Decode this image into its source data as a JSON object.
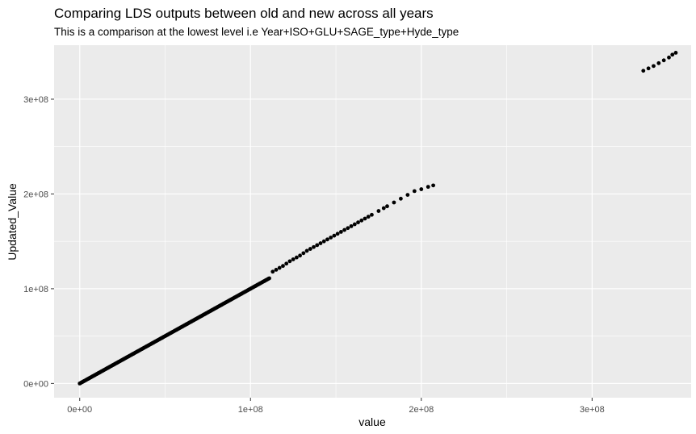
{
  "chart_data": {
    "type": "scatter",
    "title": "Comparing LDS outputs between old and new across all years",
    "subtitle": "This is a comparison at the lowest level i.e Year+ISO+GLU+SAGE_type+Hyde_type",
    "xlabel": "value",
    "ylabel": "Updated_Value",
    "xlim": [
      -15000000,
      358000000
    ],
    "ylim": [
      -15000000,
      357000000
    ],
    "x_ticks": [
      0,
      100000000,
      200000000,
      300000000
    ],
    "x_tick_labels": [
      "0e+00",
      "1e+08",
      "2e+08",
      "3e+08"
    ],
    "y_ticks": [
      0,
      100000000,
      200000000,
      300000000
    ],
    "y_tick_labels": [
      "0e+00",
      "1e+08",
      "2e+08",
      "3e+08"
    ],
    "grid": true,
    "point_color": "#000000",
    "panel_background": "#ebebeb",
    "dense_segment": {
      "from": 0,
      "to": 111000000,
      "step": 500000
    },
    "points": [
      [
        113000000,
        118000000
      ],
      [
        115000000,
        120000000
      ],
      [
        117000000,
        122000000
      ],
      [
        119000000,
        124000000
      ],
      [
        121000000,
        126500000
      ],
      [
        123000000,
        129000000
      ],
      [
        125000000,
        131000000
      ],
      [
        127000000,
        133000000
      ],
      [
        129000000,
        135000000
      ],
      [
        131000000,
        137500000
      ],
      [
        133000000,
        140000000
      ],
      [
        135000000,
        142000000
      ],
      [
        137000000,
        144000000
      ],
      [
        139000000,
        146000000
      ],
      [
        141000000,
        148000000
      ],
      [
        143000000,
        150000000
      ],
      [
        145000000,
        152000000
      ],
      [
        147000000,
        154000000
      ],
      [
        149000000,
        156000000
      ],
      [
        151000000,
        158000000
      ],
      [
        153000000,
        160000000
      ],
      [
        155000000,
        162000000
      ],
      [
        157000000,
        164000000
      ],
      [
        159000000,
        166000000
      ],
      [
        161000000,
        168000000
      ],
      [
        163000000,
        170000000
      ],
      [
        165000000,
        172000000
      ],
      [
        167000000,
        174000000
      ],
      [
        169000000,
        176000000
      ],
      [
        171000000,
        178000000
      ],
      [
        175000000,
        182000000
      ],
      [
        178000000,
        185000000
      ],
      [
        180000000,
        187000000
      ],
      [
        184000000,
        191000000
      ],
      [
        188000000,
        195000000
      ],
      [
        192000000,
        199000000
      ],
      [
        196000000,
        203000000
      ],
      [
        200000000,
        205000000
      ],
      [
        204000000,
        207500000
      ],
      [
        207000000,
        209000000
      ],
      [
        330000000,
        330000000
      ],
      [
        333000000,
        332500000
      ],
      [
        336000000,
        335000000
      ],
      [
        339000000,
        338000000
      ],
      [
        342000000,
        341000000
      ],
      [
        345000000,
        344000000
      ],
      [
        347000000,
        347000000
      ],
      [
        349000000,
        349000000
      ]
    ]
  }
}
